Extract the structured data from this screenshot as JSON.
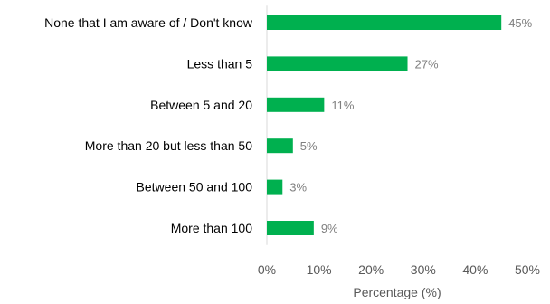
{
  "chart_data": {
    "type": "bar",
    "orientation": "horizontal",
    "categories": [
      "None that I am aware of / Don't know",
      "Less than 5",
      "Between 5 and 20",
      "More than 20 but less than 50",
      "Between 50 and 100",
      "More than 100"
    ],
    "values": [
      45,
      27,
      11,
      5,
      3,
      9
    ],
    "value_labels": [
      "45%",
      "27%",
      "11%",
      "5%",
      "3%",
      "9%"
    ],
    "xlabel": "Percentage (%)",
    "ylabel": "",
    "xlim": [
      0,
      50
    ],
    "x_ticks": [
      0,
      10,
      20,
      30,
      40,
      50
    ],
    "x_tick_labels": [
      "0%",
      "10%",
      "20%",
      "30%",
      "40%",
      "50%"
    ],
    "grid": false,
    "legend": "none",
    "colors": {
      "bar": "#00b04f",
      "value_label": "#7f7f7f",
      "tick_label": "#595959",
      "category_label": "#000000",
      "axis_line": "#d9d9d9"
    }
  }
}
